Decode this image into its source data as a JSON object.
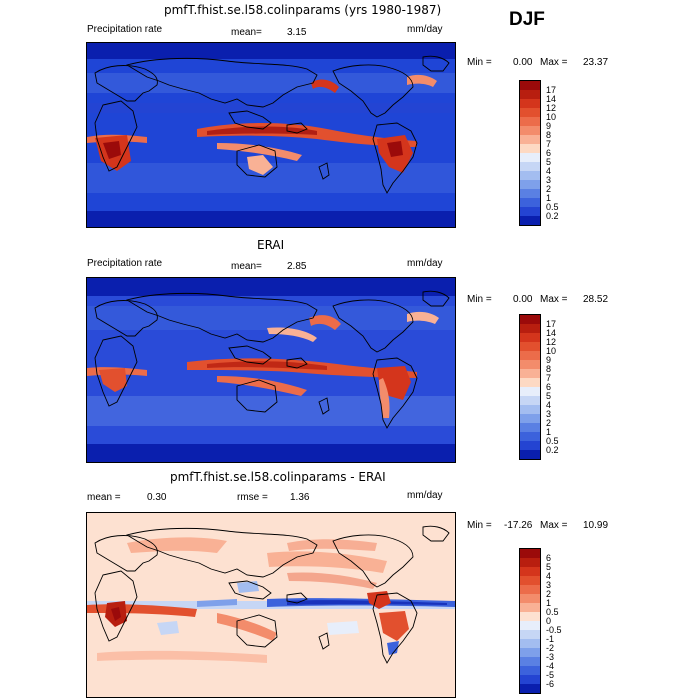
{
  "season": "DJF",
  "panel1": {
    "title": "pmfT.fhist.se.l58.colinparams (yrs 1980-1987)",
    "left_label": "Precipitation rate",
    "mean_label": "mean=",
    "mean_value": "3.15",
    "units": "mm/day",
    "min_label": "Min =",
    "min_value": "0.00",
    "max_label": "Max =",
    "max_value": "23.37"
  },
  "panel2": {
    "title": "ERAI",
    "left_label": "Precipitation rate",
    "mean_label": "mean=",
    "mean_value": "2.85",
    "units": "mm/day",
    "min_label": "Min =",
    "min_value": "0.00",
    "max_label": "Max =",
    "max_value": "28.52"
  },
  "panel3": {
    "title": "pmfT.fhist.se.l58.colinparams - ERAI",
    "mean_label": "mean =",
    "mean_value": "0.30",
    "rmse_label": "rmse =",
    "rmse_value": "1.36",
    "units": "mm/day",
    "min_label": "Min =",
    "min_value": "-17.26",
    "max_label": "Max =",
    "max_value": "10.99"
  },
  "colorbar_precip": {
    "labels": [
      "17",
      "14",
      "12",
      "10",
      "9",
      "8",
      "7",
      "6",
      "5",
      "4",
      "3",
      "2",
      "1",
      "0.5",
      "0.2"
    ],
    "colors": [
      "#9b0a0a",
      "#b81e0f",
      "#d4351c",
      "#e2502e",
      "#ec6c4a",
      "#f38c6b",
      "#f9b195",
      "#fdd9c3",
      "#e7eefb",
      "#c6d6f5",
      "#a3bdf0",
      "#7ea0ea",
      "#5a80e3",
      "#3c62dc",
      "#2444d2",
      "#0a1fae"
    ]
  },
  "colorbar_diff": {
    "labels": [
      "6",
      "5",
      "4",
      "3",
      "2",
      "1",
      "0.5",
      "0",
      "-0.5",
      "-1",
      "-2",
      "-3",
      "-4",
      "-5",
      "-6"
    ],
    "colors": [
      "#9b0a0a",
      "#b81e0f",
      "#d4351c",
      "#e2502e",
      "#ec6c4a",
      "#f38c6b",
      "#f9b195",
      "#fde1d1",
      "#e7eefb",
      "#c6d6f5",
      "#a3bdf0",
      "#7ea0ea",
      "#5a80e3",
      "#3c62dc",
      "#2444d2",
      "#0a1fae"
    ]
  }
}
